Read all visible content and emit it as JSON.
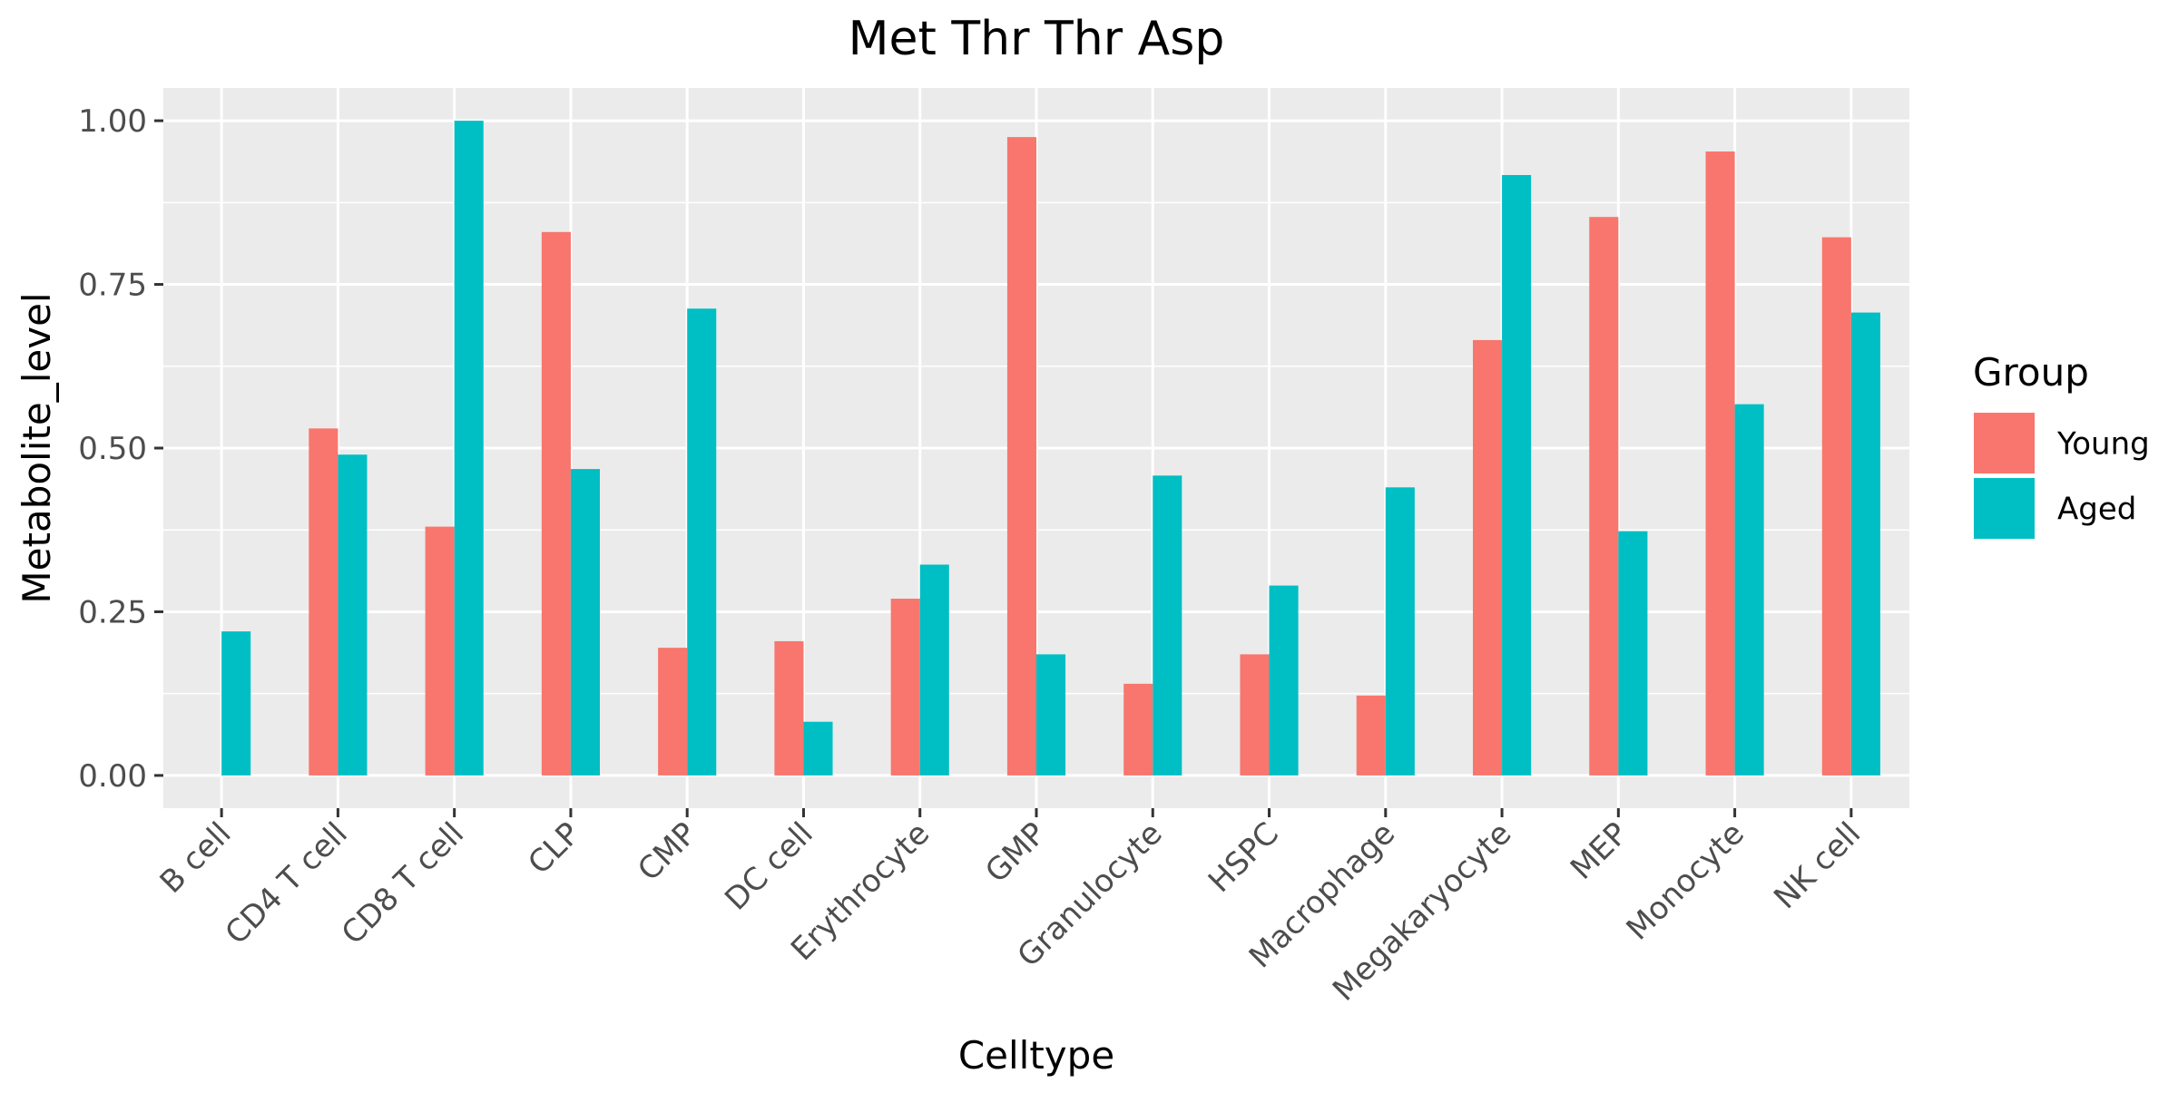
{
  "chart_data": {
    "type": "bar",
    "title": "Met Thr Thr Asp",
    "xlabel": "Celltype",
    "ylabel": "Metabolite_level",
    "ylim": [
      -0.05,
      1.05
    ],
    "yticks": [
      0.0,
      0.25,
      0.5,
      0.75,
      1.0
    ],
    "ytick_labels": [
      "0.00",
      "0.25",
      "0.50",
      "0.75",
      "1.00"
    ],
    "grid": true,
    "legend": {
      "title": "Group",
      "position": "right"
    },
    "categories": [
      "B cell",
      "CD4 T cell",
      "CD8 T cell",
      "CLP",
      "CMP",
      "DC cell",
      "Erythrocyte",
      "GMP",
      "Granulocyte",
      "HSPC",
      "Macrophage",
      "Megakaryocyte",
      "MEP",
      "Monocyte",
      "NK cell"
    ],
    "series": [
      {
        "name": "Young",
        "color": "#F8766D",
        "values": [
          null,
          0.53,
          0.38,
          0.83,
          0.195,
          0.205,
          0.27,
          0.975,
          0.14,
          0.185,
          0.122,
          0.665,
          0.853,
          0.953,
          0.822
        ]
      },
      {
        "name": "Aged",
        "color": "#00BFC4",
        "values": [
          0.22,
          0.49,
          1.0,
          0.468,
          0.713,
          0.082,
          0.322,
          0.185,
          0.458,
          0.29,
          0.44,
          0.917,
          0.373,
          0.567,
          0.707
        ]
      }
    ]
  }
}
